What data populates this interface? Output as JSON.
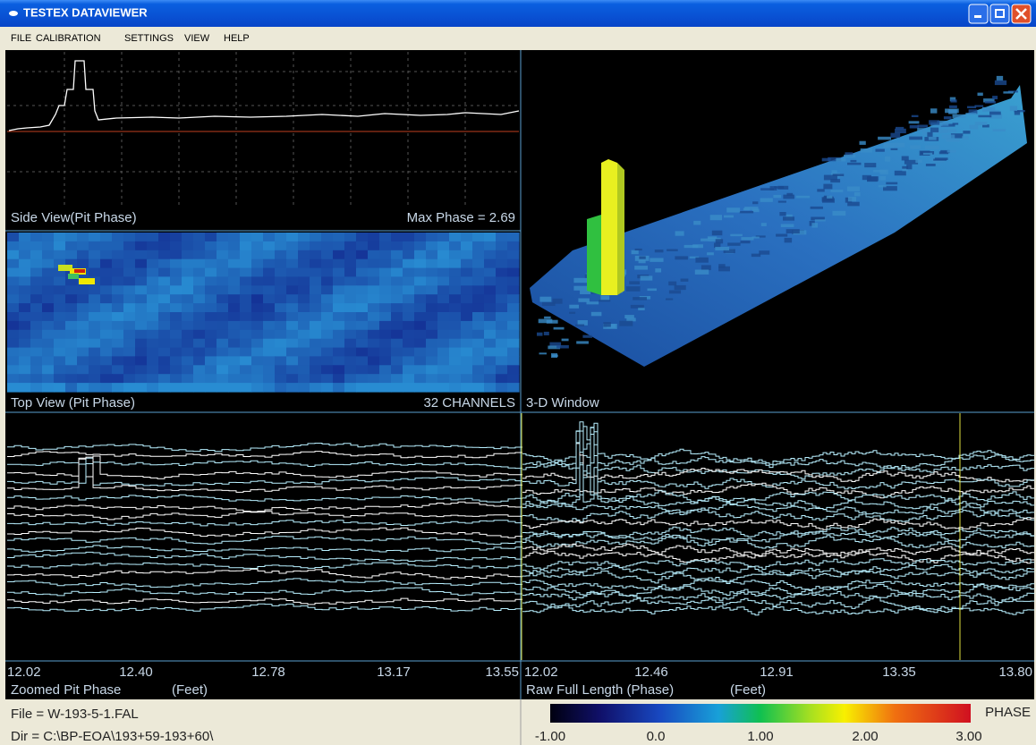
{
  "window": {
    "title": "TESTEX DATAVIEWER"
  },
  "menu": [
    "FILE",
    "CALIBRATION",
    "SETTINGS",
    "VIEW",
    "HELP"
  ],
  "side_view": {
    "label": "Side View(Pit Phase)",
    "max_phase": "Max Phase = 2.69"
  },
  "top_view": {
    "label": "Top View (Pit Phase)",
    "channels": "32 CHANNELS"
  },
  "window_3d": {
    "label": "3-D Window"
  },
  "zoomed": {
    "ticks": [
      "12.02",
      "12.40",
      "12.78",
      "13.17",
      "13.55"
    ],
    "label": "Zoomed Pit Phase",
    "unit": "(Feet)"
  },
  "raw": {
    "ticks": [
      "12.02",
      "12.46",
      "12.91",
      "13.35",
      "13.80"
    ],
    "label": "Raw Full Length (Phase)",
    "unit": "(Feet)"
  },
  "status": {
    "file": "File = W-193-5-1.FAL",
    "dir": "Dir = C:\\BP-EOA\\193+59-193+60\\"
  },
  "colorbar": {
    "label": "PHASE",
    "ticks": [
      "-1.00",
      "0.0",
      "1.00",
      "2.00",
      "3.00"
    ]
  }
}
